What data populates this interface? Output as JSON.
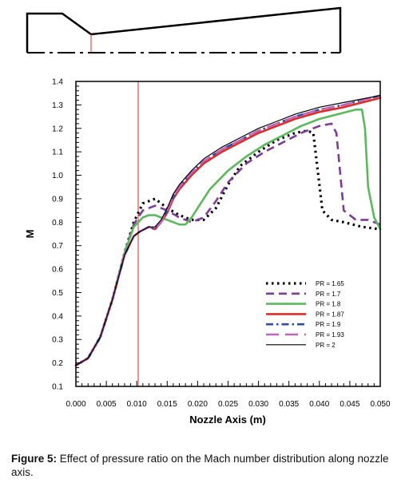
{
  "chart_data": {
    "type": "line",
    "xlabel": "Nozzle Axis (m)",
    "ylabel": "M",
    "xlim": [
      0.0,
      0.05
    ],
    "ylim": [
      0.1,
      1.4
    ],
    "x_ticks": [
      "0.000",
      "0.005",
      "0.010",
      "0.015",
      "0.020",
      "0.025",
      "0.030",
      "0.035",
      "0.040",
      "0.045",
      "0.050"
    ],
    "y_ticks": [
      "0.1",
      "0.2",
      "0.3",
      "0.4",
      "0.5",
      "0.6",
      "0.7",
      "0.8",
      "0.9",
      "1.0",
      "1.1",
      "1.2",
      "1.3",
      "1.4"
    ],
    "throat_x": 0.01,
    "legend_position": "bottom-right",
    "series": [
      {
        "name": "PR = 1.65",
        "color": "#000000",
        "style": "dotted",
        "x": [
          0,
          0.002,
          0.004,
          0.006,
          0.008,
          0.0095,
          0.011,
          0.013,
          0.015,
          0.017,
          0.019,
          0.021,
          0.023,
          0.025,
          0.027,
          0.03,
          0.033,
          0.036,
          0.038,
          0.039,
          0.0405,
          0.042,
          0.044,
          0.047,
          0.05
        ],
        "y": [
          0.19,
          0.22,
          0.31,
          0.47,
          0.67,
          0.8,
          0.88,
          0.9,
          0.86,
          0.83,
          0.81,
          0.81,
          0.86,
          0.96,
          1.04,
          1.1,
          1.15,
          1.18,
          1.19,
          1.18,
          0.85,
          0.81,
          0.8,
          0.78,
          0.77
        ]
      },
      {
        "name": "PR = 1.7",
        "color": "#7d3c98",
        "style": "dashed",
        "x": [
          0,
          0.002,
          0.004,
          0.006,
          0.008,
          0.0095,
          0.011,
          0.013,
          0.015,
          0.017,
          0.019,
          0.021,
          0.023,
          0.025,
          0.028,
          0.031,
          0.034,
          0.037,
          0.04,
          0.042,
          0.0428,
          0.044,
          0.046,
          0.048,
          0.05
        ],
        "y": [
          0.19,
          0.22,
          0.31,
          0.47,
          0.67,
          0.79,
          0.85,
          0.87,
          0.85,
          0.82,
          0.8,
          0.82,
          0.89,
          0.97,
          1.05,
          1.1,
          1.14,
          1.18,
          1.21,
          1.22,
          1.18,
          0.85,
          0.81,
          0.81,
          0.79
        ]
      },
      {
        "name": "PR = 1.8",
        "color": "#5cb85c",
        "style": "solid",
        "x": [
          0,
          0.002,
          0.004,
          0.006,
          0.008,
          0.0095,
          0.011,
          0.012,
          0.013,
          0.015,
          0.017,
          0.018,
          0.019,
          0.02,
          0.022,
          0.025,
          0.028,
          0.031,
          0.034,
          0.037,
          0.04,
          0.043,
          0.046,
          0.047,
          0.0475,
          0.048,
          0.049,
          0.05
        ],
        "y": [
          0.19,
          0.22,
          0.31,
          0.47,
          0.67,
          0.78,
          0.82,
          0.83,
          0.83,
          0.81,
          0.79,
          0.79,
          0.82,
          0.86,
          0.94,
          1.02,
          1.08,
          1.13,
          1.17,
          1.21,
          1.24,
          1.26,
          1.28,
          1.28,
          1.2,
          0.95,
          0.82,
          0.77
        ]
      },
      {
        "name": "PR = 1.87",
        "color": "#e02b2b",
        "style": "solid",
        "x": [
          0,
          0.002,
          0.004,
          0.006,
          0.008,
          0.0095,
          0.0105,
          0.012,
          0.013,
          0.014,
          0.015,
          0.016,
          0.017,
          0.019,
          0.021,
          0.024,
          0.027,
          0.03,
          0.033,
          0.036,
          0.04,
          0.044,
          0.05
        ],
        "y": [
          0.19,
          0.22,
          0.31,
          0.47,
          0.66,
          0.74,
          0.76,
          0.78,
          0.77,
          0.8,
          0.84,
          0.9,
          0.94,
          1.0,
          1.05,
          1.1,
          1.14,
          1.18,
          1.21,
          1.24,
          1.27,
          1.29,
          1.33
        ]
      },
      {
        "name": "PR = 1.9",
        "color": "#2d4fa8",
        "style": "dashdot",
        "x": [
          0,
          0.002,
          0.004,
          0.006,
          0.008,
          0.0095,
          0.0105,
          0.012,
          0.013,
          0.014,
          0.015,
          0.016,
          0.017,
          0.019,
          0.021,
          0.024,
          0.027,
          0.03,
          0.033,
          0.036,
          0.04,
          0.044,
          0.05
        ],
        "y": [
          0.19,
          0.22,
          0.31,
          0.47,
          0.66,
          0.74,
          0.76,
          0.78,
          0.77,
          0.8,
          0.85,
          0.91,
          0.95,
          1.01,
          1.06,
          1.11,
          1.15,
          1.19,
          1.22,
          1.25,
          1.28,
          1.3,
          1.34
        ]
      },
      {
        "name": "PR = 1.93",
        "color": "#c066b8",
        "style": "longdash",
        "x": [
          0,
          0.002,
          0.004,
          0.006,
          0.008,
          0.0095,
          0.0105,
          0.012,
          0.013,
          0.014,
          0.015,
          0.016,
          0.017,
          0.019,
          0.021,
          0.024,
          0.027,
          0.03,
          0.033,
          0.036,
          0.04,
          0.044,
          0.05
        ],
        "y": [
          0.19,
          0.22,
          0.31,
          0.47,
          0.66,
          0.74,
          0.76,
          0.78,
          0.77,
          0.8,
          0.85,
          0.91,
          0.95,
          1.01,
          1.06,
          1.11,
          1.15,
          1.19,
          1.22,
          1.25,
          1.28,
          1.3,
          1.34
        ]
      },
      {
        "name": "PR = 2",
        "color": "#000000",
        "style": "thin",
        "x": [
          0,
          0.002,
          0.004,
          0.006,
          0.008,
          0.0095,
          0.0105,
          0.012,
          0.013,
          0.014,
          0.015,
          0.016,
          0.017,
          0.019,
          0.021,
          0.024,
          0.027,
          0.03,
          0.033,
          0.036,
          0.04,
          0.044,
          0.05
        ],
        "y": [
          0.19,
          0.22,
          0.31,
          0.47,
          0.66,
          0.74,
          0.76,
          0.78,
          0.78,
          0.81,
          0.86,
          0.92,
          0.96,
          1.02,
          1.07,
          1.12,
          1.16,
          1.2,
          1.23,
          1.26,
          1.29,
          1.31,
          1.34
        ]
      }
    ]
  },
  "caption": {
    "label": "Figure 5:",
    "text": " Effect of pressure ratio on the Mach number distribution along nozzle axis."
  }
}
